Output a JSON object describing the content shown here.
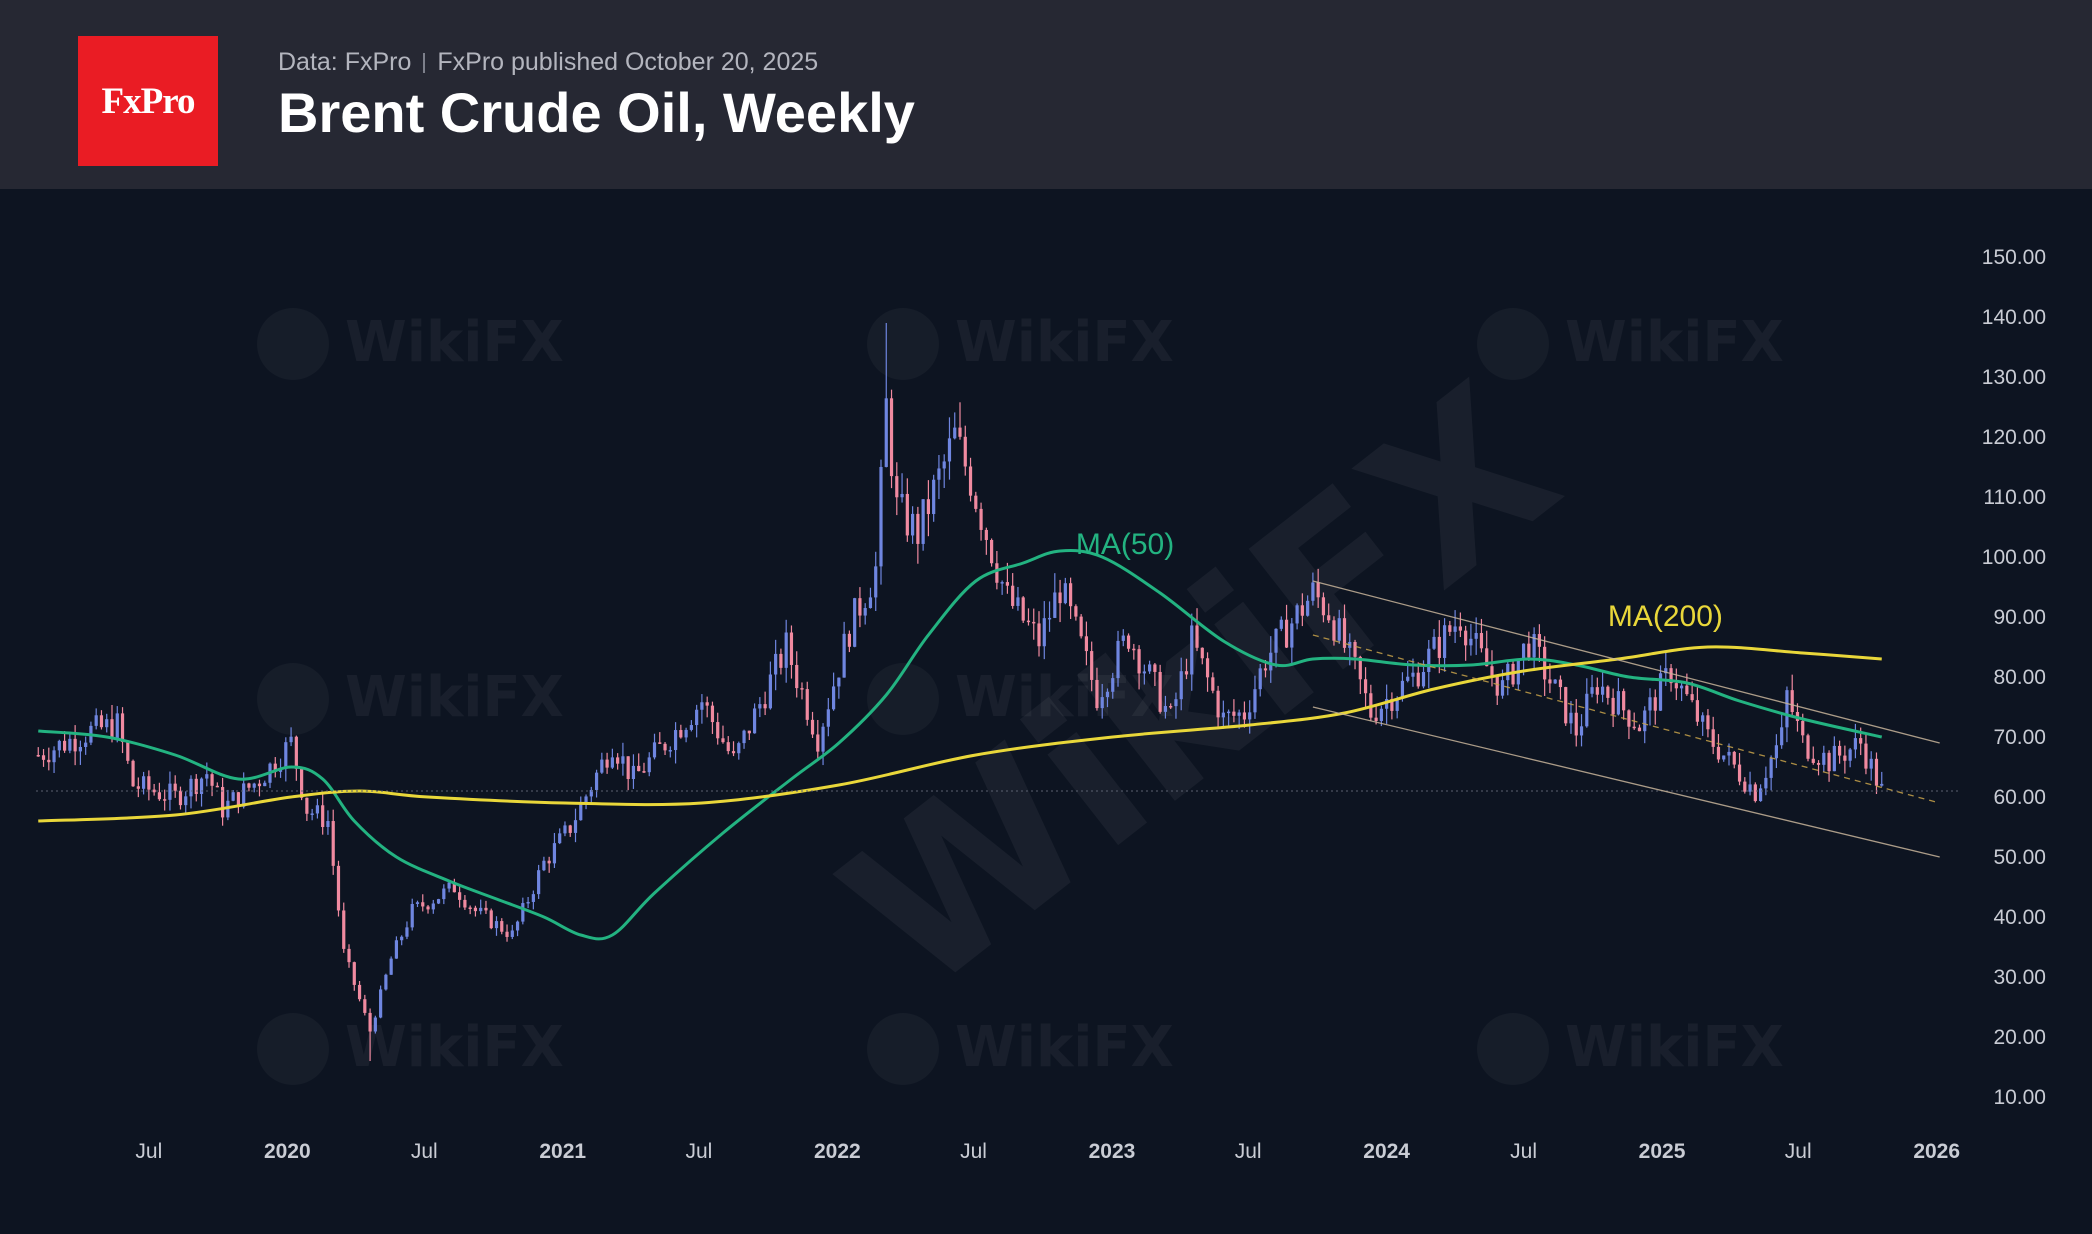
{
  "header": {
    "logo_text": "FxPro",
    "data_source": "Data: FxPro",
    "published": "FxPro published October 20, 2025",
    "title": "Brent Crude Oil, Weekly"
  },
  "watermark": "WikiFX",
  "colors": {
    "header_bg": "#262833",
    "chart_bg": "#0d1421",
    "logo_bg": "#ea1c24",
    "bull_candle": "#6f86e0",
    "bear_candle": "#f08aa0",
    "ma50": "#23b381",
    "ma200": "#e9d73a",
    "channel": "#c8b49a"
  },
  "chart_data": {
    "type": "candlestick",
    "title": "Brent Crude Oil, Weekly",
    "x_range": [
      "2019-02-01",
      "2026-02-01"
    ],
    "ylim": [
      3,
      153
    ],
    "y_ticks": [
      "150.00",
      "140.00",
      "130.00",
      "120.00",
      "110.00",
      "100.00",
      "90.00",
      "80.00",
      "70.00",
      "60.00",
      "50.00",
      "40.00",
      "30.00",
      "20.00",
      "10.00"
    ],
    "x_ticks": [
      {
        "label": "Jul",
        "date": "2019-07-01",
        "year": false
      },
      {
        "label": "2020",
        "date": "2020-01-01",
        "year": true
      },
      {
        "label": "Jul",
        "date": "2020-07-01",
        "year": false
      },
      {
        "label": "2021",
        "date": "2021-01-01",
        "year": true
      },
      {
        "label": "Jul",
        "date": "2021-07-01",
        "year": false
      },
      {
        "label": "2022",
        "date": "2022-01-01",
        "year": true
      },
      {
        "label": "Jul",
        "date": "2022-07-01",
        "year": false
      },
      {
        "label": "2023",
        "date": "2023-01-01",
        "year": true
      },
      {
        "label": "Jul",
        "date": "2023-07-01",
        "year": false
      },
      {
        "label": "2024",
        "date": "2024-01-01",
        "year": true
      },
      {
        "label": "Jul",
        "date": "2024-07-01",
        "year": false
      },
      {
        "label": "2025",
        "date": "2025-01-01",
        "year": true
      },
      {
        "label": "Jul",
        "date": "2025-07-01",
        "year": false
      },
      {
        "label": "2026",
        "date": "2026-01-01",
        "year": true
      }
    ],
    "price_path": [
      [
        "2019-02-04",
        67
      ],
      [
        "2019-04-15",
        71
      ],
      [
        "2019-05-20",
        72
      ],
      [
        "2019-06-10",
        62
      ],
      [
        "2019-08-05",
        60
      ],
      [
        "2019-09-16",
        64
      ],
      [
        "2019-10-07",
        58
      ],
      [
        "2019-11-25",
        63
      ],
      [
        "2020-01-06",
        69
      ],
      [
        "2020-01-27",
        58
      ],
      [
        "2020-02-24",
        56
      ],
      [
        "2020-03-16",
        34
      ],
      [
        "2020-04-20",
        21
      ],
      [
        "2020-05-18",
        33
      ],
      [
        "2020-06-15",
        41
      ],
      [
        "2020-08-10",
        45
      ],
      [
        "2020-09-07",
        41
      ],
      [
        "2020-10-26",
        37
      ],
      [
        "2020-12-07",
        49
      ],
      [
        "2021-01-11",
        55
      ],
      [
        "2021-03-08",
        69
      ],
      [
        "2021-04-05",
        63
      ],
      [
        "2021-06-07",
        72
      ],
      [
        "2021-07-05",
        76
      ],
      [
        "2021-08-16",
        66
      ],
      [
        "2021-10-25",
        85
      ],
      [
        "2021-12-06",
        70
      ],
      [
        "2022-01-17",
        88
      ],
      [
        "2022-02-21",
        98
      ],
      [
        "2022-03-07",
        125
      ],
      [
        "2022-03-21",
        108
      ],
      [
        "2022-04-18",
        104
      ],
      [
        "2022-06-06",
        120
      ],
      [
        "2022-06-27",
        113
      ],
      [
        "2022-07-18",
        104
      ],
      [
        "2022-08-15",
        93
      ],
      [
        "2022-09-26",
        86
      ],
      [
        "2022-10-24",
        95
      ],
      [
        "2022-11-21",
        85
      ],
      [
        "2022-12-12",
        77
      ],
      [
        "2023-01-23",
        87
      ],
      [
        "2023-03-20",
        73
      ],
      [
        "2023-04-17",
        86
      ],
      [
        "2023-05-29",
        73
      ],
      [
        "2023-06-26",
        74
      ],
      [
        "2023-07-24",
        83
      ],
      [
        "2023-09-25",
        94
      ],
      [
        "2023-10-16",
        91
      ],
      [
        "2023-11-20",
        81
      ],
      [
        "2023-12-11",
        74
      ],
      [
        "2024-02-05",
        80
      ],
      [
        "2024-04-08",
        90
      ],
      [
        "2024-05-06",
        83
      ],
      [
        "2024-06-03",
        78
      ],
      [
        "2024-07-08",
        86
      ],
      [
        "2024-09-09",
        71
      ],
      [
        "2024-10-07",
        79
      ],
      [
        "2024-12-02",
        72
      ],
      [
        "2025-01-13",
        81
      ],
      [
        "2025-03-03",
        70
      ],
      [
        "2025-04-07",
        65
      ],
      [
        "2025-05-05",
        61
      ],
      [
        "2025-06-09",
        70
      ],
      [
        "2025-06-16",
        77
      ],
      [
        "2025-07-07",
        69
      ],
      [
        "2025-08-11",
        66
      ],
      [
        "2025-09-22",
        69
      ],
      [
        "2025-10-20",
        61
      ]
    ],
    "series": [
      {
        "name": "MA(50)",
        "points": [
          [
            "2019-02-04",
            71
          ],
          [
            "2019-05-06",
            70
          ],
          [
            "2019-08-05",
            67
          ],
          [
            "2019-10-28",
            63
          ],
          [
            "2020-01-06",
            65
          ],
          [
            "2020-02-17",
            63
          ],
          [
            "2020-03-30",
            56
          ],
          [
            "2020-05-25",
            50
          ],
          [
            "2020-08-03",
            46
          ],
          [
            "2020-10-05",
            43
          ],
          [
            "2020-12-07",
            40
          ],
          [
            "2021-01-25",
            37
          ],
          [
            "2021-03-08",
            37
          ],
          [
            "2021-05-03",
            44
          ],
          [
            "2021-08-02",
            54
          ],
          [
            "2021-11-01",
            63
          ],
          [
            "2022-01-03",
            69
          ],
          [
            "2022-03-07",
            77
          ],
          [
            "2022-05-02",
            87
          ],
          [
            "2022-07-04",
            96
          ],
          [
            "2022-09-05",
            99
          ],
          [
            "2022-10-24",
            101
          ],
          [
            "2022-12-19",
            100
          ],
          [
            "2023-03-06",
            94
          ],
          [
            "2023-05-29",
            86
          ],
          [
            "2023-08-07",
            82
          ],
          [
            "2023-09-25",
            83
          ],
          [
            "2023-11-20",
            83
          ],
          [
            "2024-02-05",
            82
          ],
          [
            "2024-04-22",
            82
          ],
          [
            "2024-07-08",
            83
          ],
          [
            "2024-09-09",
            82
          ],
          [
            "2024-11-18",
            80
          ],
          [
            "2025-02-03",
            79
          ],
          [
            "2025-04-14",
            76
          ],
          [
            "2025-07-07",
            73
          ],
          [
            "2025-10-20",
            70
          ]
        ]
      },
      {
        "name": "MA(200)",
        "points": [
          [
            "2019-02-04",
            56
          ],
          [
            "2019-08-05",
            57
          ],
          [
            "2020-01-06",
            60
          ],
          [
            "2020-04-06",
            61
          ],
          [
            "2020-07-06",
            60
          ],
          [
            "2021-01-04",
            59
          ],
          [
            "2021-07-05",
            59
          ],
          [
            "2022-01-03",
            62
          ],
          [
            "2022-07-04",
            67
          ],
          [
            "2023-01-02",
            70
          ],
          [
            "2023-07-03",
            72
          ],
          [
            "2023-11-06",
            74
          ],
          [
            "2024-03-04",
            78
          ],
          [
            "2024-07-01",
            81
          ],
          [
            "2024-11-04",
            83
          ],
          [
            "2025-03-03",
            85
          ],
          [
            "2025-07-07",
            84
          ],
          [
            "2025-10-20",
            83
          ]
        ]
      }
    ],
    "channel": {
      "upper": [
        [
          "2023-09-25",
          96
        ],
        [
          "2026-01-05",
          69
        ]
      ],
      "middle": [
        [
          "2023-09-25",
          87
        ],
        [
          "2026-01-05",
          59
        ]
      ],
      "lower": [
        [
          "2023-09-25",
          75
        ],
        [
          "2026-01-05",
          50
        ]
      ]
    },
    "annotations": [
      {
        "text": "MA(50)",
        "date": "2022-11-14",
        "price": 100.5,
        "color": "#23b381"
      },
      {
        "text": "MA(200)",
        "date": "2024-10-21",
        "price": 88.5,
        "color": "#e9d73a"
      }
    ],
    "last_price_line": 61,
    "grid": false
  }
}
